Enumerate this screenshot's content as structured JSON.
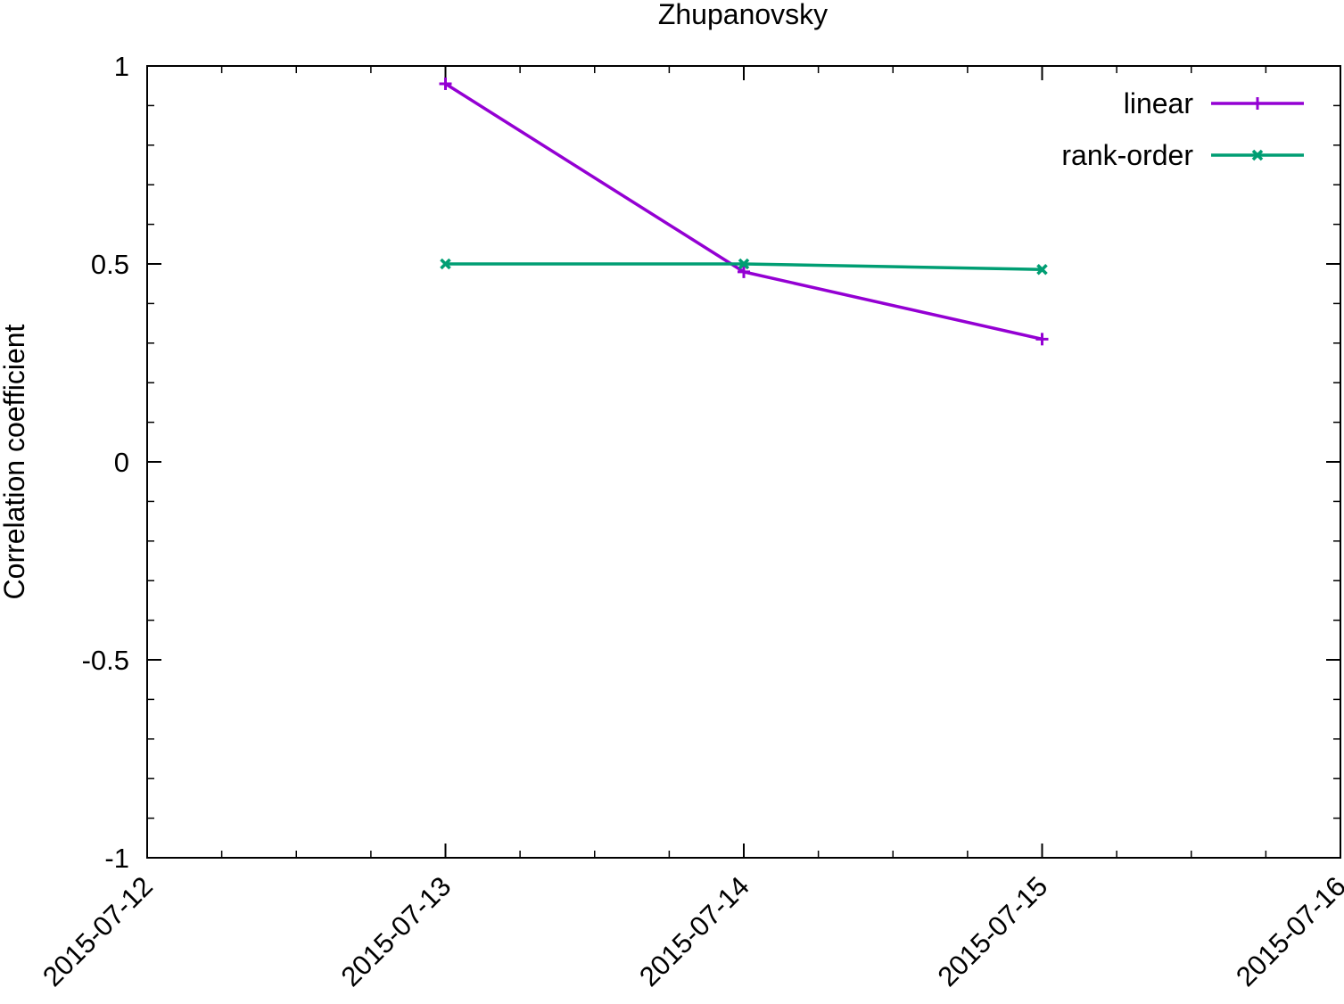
{
  "chart_data": {
    "type": "line",
    "title": "Zhupanovsky",
    "xlabel": "",
    "ylabel": "Correlation coefficient",
    "x_ticks": [
      "2015-07-12",
      "2015-07-13",
      "2015-07-14",
      "2015-07-15",
      "2015-07-16"
    ],
    "xlim": [
      "2015-07-12",
      "2015-07-16"
    ],
    "y_ticks": [
      "1",
      "0.5",
      "0",
      "-0.5",
      "-1"
    ],
    "ylim": [
      -1,
      1
    ],
    "grid": false,
    "legend_position": "top-right",
    "series": [
      {
        "name": "linear",
        "color": "#9400d3",
        "marker": "plus",
        "x": [
          "2015-07-13",
          "2015-07-14",
          "2015-07-15"
        ],
        "values": [
          0.955,
          0.48,
          0.31
        ]
      },
      {
        "name": "rank-order",
        "color": "#009e73",
        "marker": "cross",
        "x": [
          "2015-07-13",
          "2015-07-14",
          "2015-07-15"
        ],
        "values": [
          0.5,
          0.5,
          0.486
        ]
      }
    ]
  }
}
